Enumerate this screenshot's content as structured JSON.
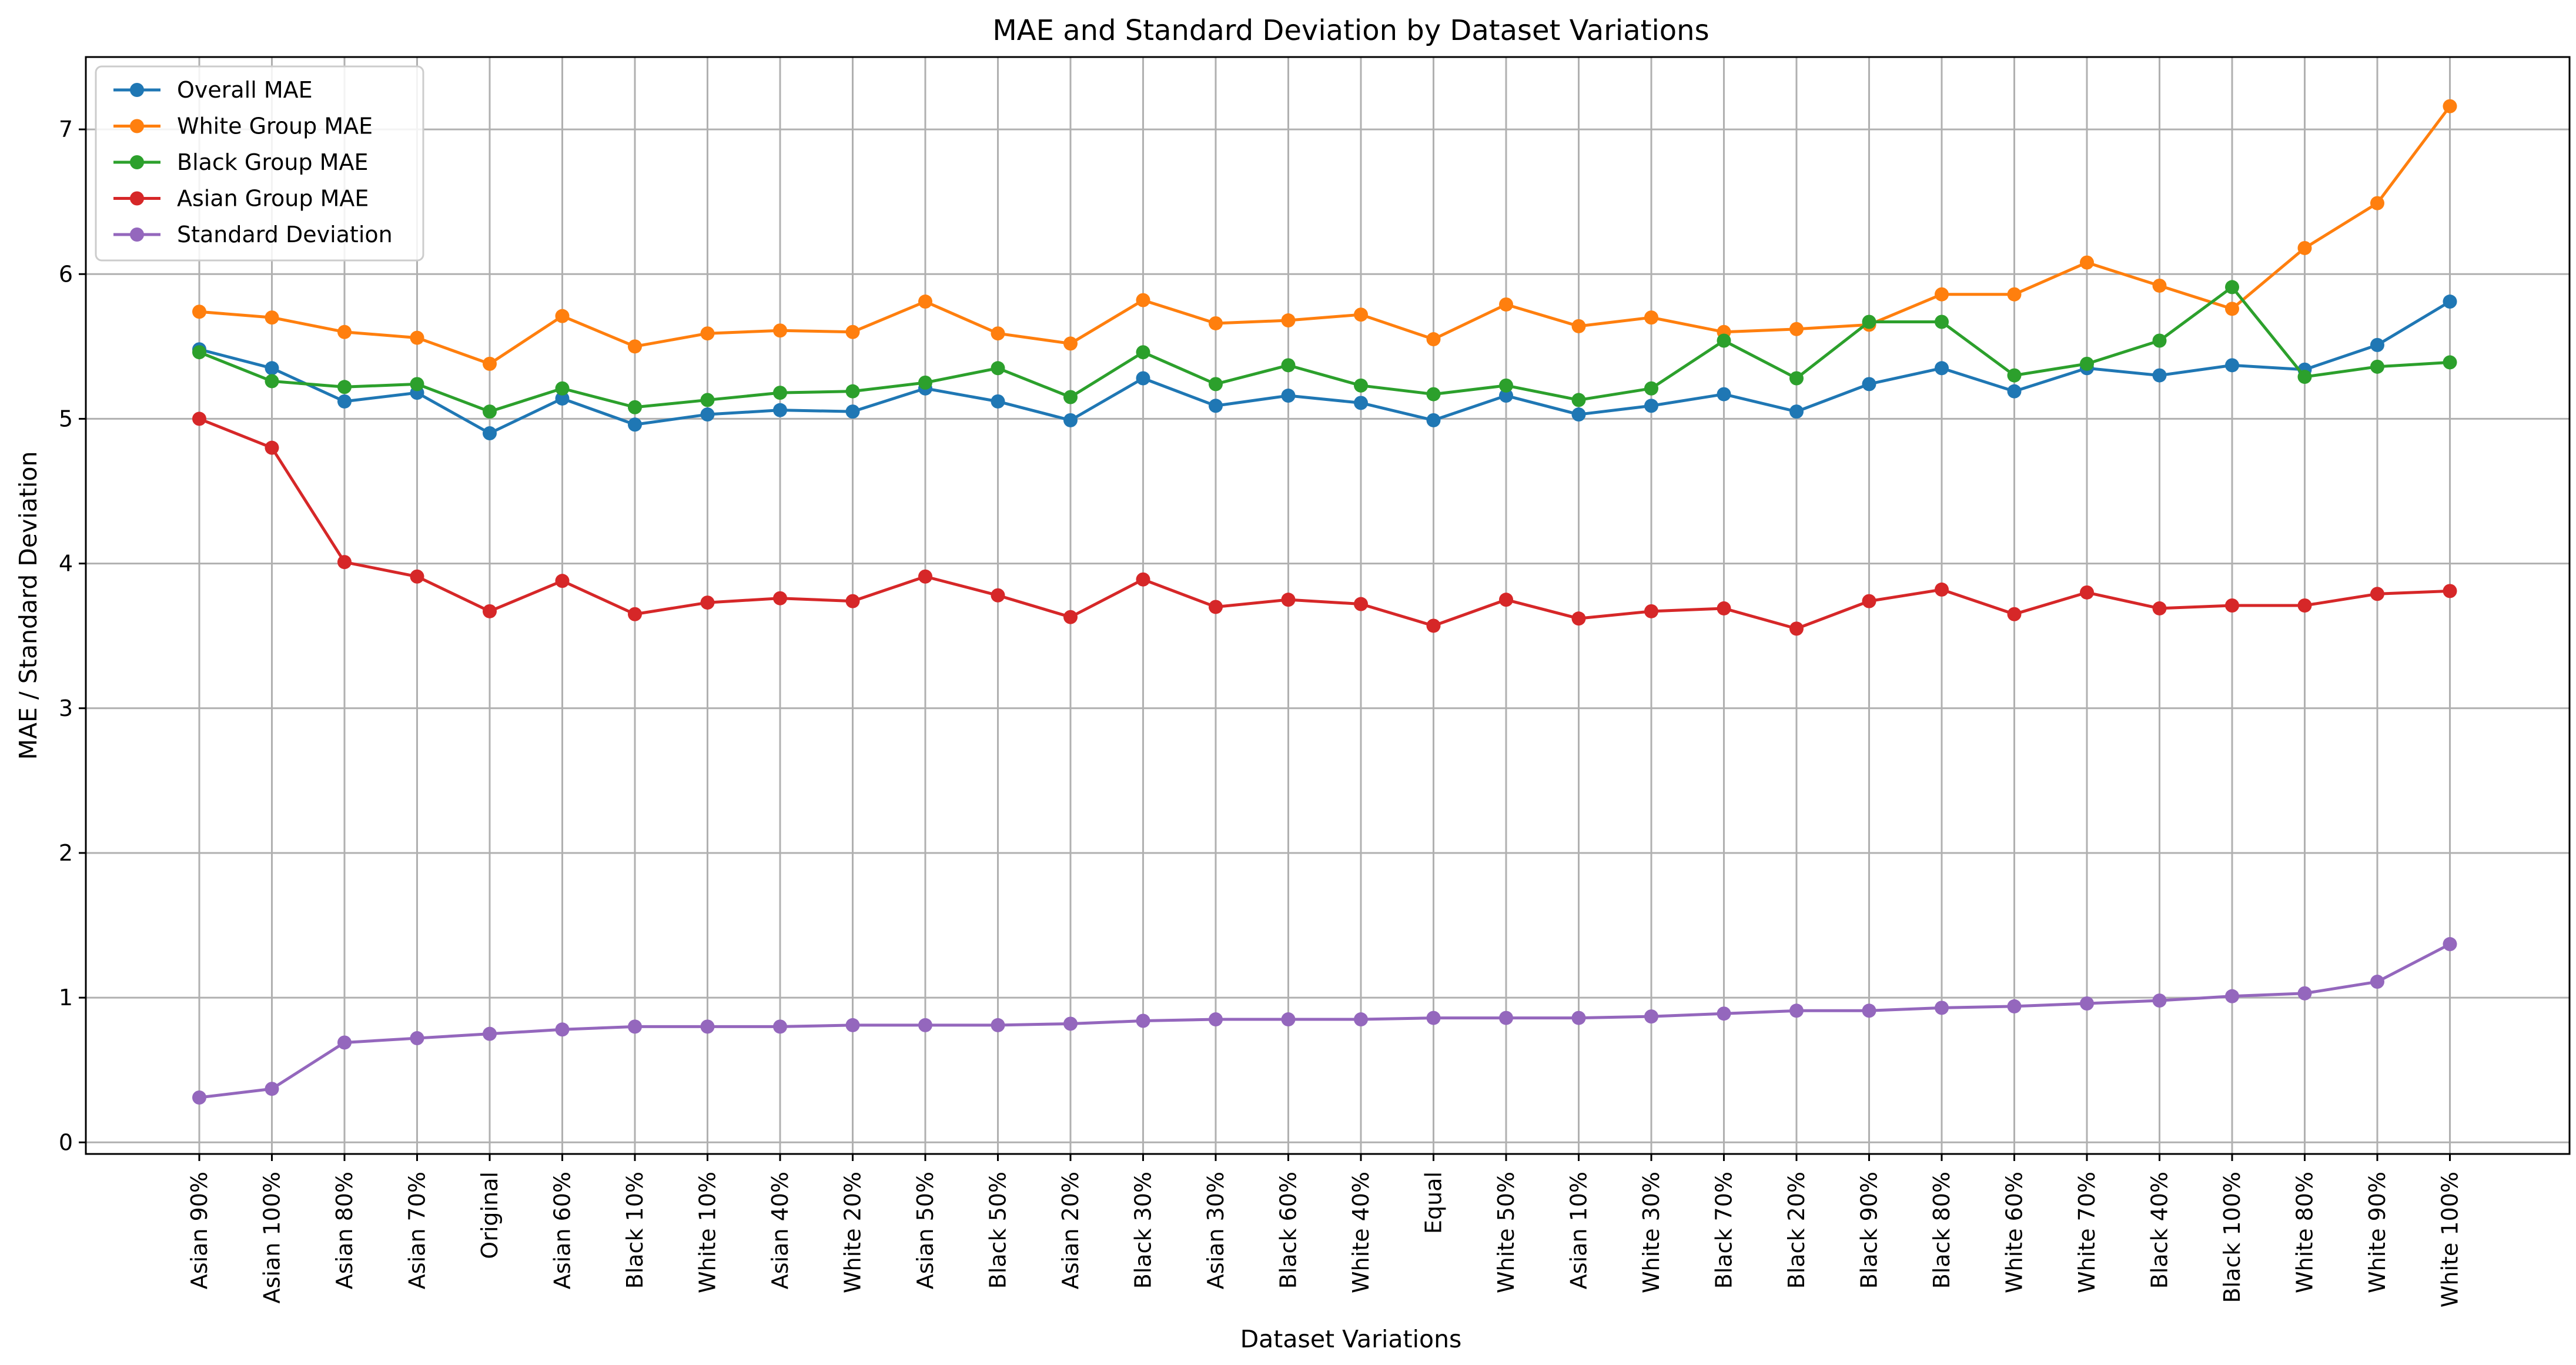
{
  "chart_data": {
    "type": "line",
    "title": "MAE and Standard Deviation by Dataset Variations",
    "xlabel": "Dataset Variations",
    "ylabel": "MAE / Standard Deviation",
    "ylim": [
      -0.08,
      7.5
    ],
    "yticks": [
      0,
      1,
      2,
      3,
      4,
      5,
      6,
      7
    ],
    "grid": true,
    "legend_position": "upper-left",
    "categories": [
      "Asian 90%",
      "Asian 100%",
      "Asian 80%",
      "Asian 70%",
      "Original",
      "Asian 60%",
      "Black 10%",
      "White 10%",
      "Asian 40%",
      "White 20%",
      "Asian 50%",
      "Black 50%",
      "Asian 20%",
      "Black 30%",
      "Asian 30%",
      "Black 60%",
      "White 40%",
      "Equal",
      "White 50%",
      "Asian 10%",
      "White 30%",
      "Black 70%",
      "Black 20%",
      "Black 90%",
      "Black 80%",
      "White 60%",
      "White 70%",
      "Black 40%",
      "Black 100%",
      "White 80%",
      "White 90%",
      "White 100%"
    ],
    "series": [
      {
        "name": "Overall MAE",
        "color": "#1f77b4",
        "values": [
          5.48,
          5.35,
          5.12,
          5.18,
          4.9,
          5.14,
          4.96,
          5.03,
          5.06,
          5.05,
          5.21,
          5.12,
          4.99,
          5.28,
          5.09,
          5.16,
          5.11,
          4.99,
          5.16,
          5.03,
          5.09,
          5.17,
          5.05,
          5.24,
          5.35,
          5.19,
          5.35,
          5.3,
          5.37,
          5.34,
          5.51,
          5.81
        ]
      },
      {
        "name": "White Group MAE",
        "color": "#ff7f0e",
        "values": [
          5.74,
          5.7,
          5.6,
          5.56,
          5.38,
          5.71,
          5.5,
          5.59,
          5.61,
          5.6,
          5.81,
          5.59,
          5.52,
          5.82,
          5.66,
          5.68,
          5.72,
          5.55,
          5.79,
          5.64,
          5.7,
          5.6,
          5.62,
          5.65,
          5.86,
          5.86,
          6.08,
          5.92,
          5.76,
          6.18,
          6.49,
          7.16
        ]
      },
      {
        "name": "Black Group MAE",
        "color": "#2ca02c",
        "values": [
          5.46,
          5.26,
          5.22,
          5.24,
          5.05,
          5.21,
          5.08,
          5.13,
          5.18,
          5.19,
          5.25,
          5.35,
          5.15,
          5.46,
          5.24,
          5.37,
          5.23,
          5.17,
          5.23,
          5.13,
          5.21,
          5.54,
          5.28,
          5.67,
          5.67,
          5.3,
          5.38,
          5.54,
          5.91,
          5.29,
          5.36,
          5.39
        ]
      },
      {
        "name": "Asian Group MAE",
        "color": "#d62728",
        "values": [
          5.0,
          4.8,
          4.01,
          3.91,
          3.67,
          3.88,
          3.65,
          3.73,
          3.76,
          3.74,
          3.91,
          3.78,
          3.63,
          3.89,
          3.7,
          3.75,
          3.72,
          3.57,
          3.75,
          3.62,
          3.67,
          3.69,
          3.55,
          3.74,
          3.82,
          3.65,
          3.8,
          3.69,
          3.71,
          3.71,
          3.79,
          3.81
        ]
      },
      {
        "name": "Standard Deviation",
        "color": "#9467bd",
        "values": [
          0.31,
          0.37,
          0.69,
          0.72,
          0.75,
          0.78,
          0.8,
          0.8,
          0.8,
          0.81,
          0.81,
          0.81,
          0.82,
          0.84,
          0.85,
          0.85,
          0.85,
          0.86,
          0.86,
          0.86,
          0.87,
          0.89,
          0.91,
          0.91,
          0.93,
          0.94,
          0.96,
          0.98,
          1.01,
          1.03,
          1.11,
          1.37
        ]
      }
    ]
  }
}
